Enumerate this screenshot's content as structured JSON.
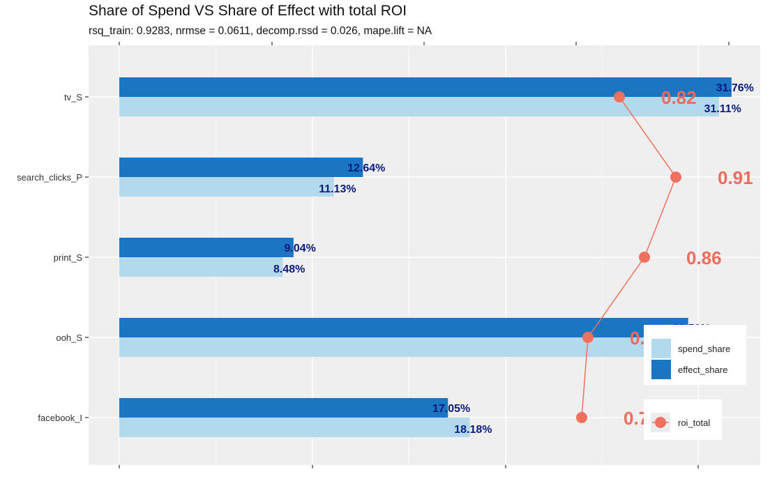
{
  "chart_data": {
    "type": "bar",
    "orientation": "horizontal",
    "title": "Share of Spend VS Share of Effect with total ROI",
    "subtitle": "rsq_train: 0.9283, nrmse = 0.0611, decomp.rssd = 0.026, mape.lift = NA",
    "xlabel": "",
    "ylabel": "",
    "categories": [
      "tv_S",
      "search_clicks_P",
      "print_S",
      "ooh_S",
      "facebook_I"
    ],
    "series": [
      {
        "name": "effect_share",
        "color": "#1b75c1",
        "values": [
          31.76,
          12.64,
          9.04,
          29.51,
          17.05
        ],
        "labels": [
          "31.76%",
          "12.64%",
          "9.04%",
          "29.51%",
          "17.05%"
        ]
      },
      {
        "name": "spend_share",
        "color": "#b3d9ec",
        "values": [
          31.11,
          11.13,
          8.48,
          31.1,
          18.18
        ],
        "labels": [
          "31.11%",
          "11.13%",
          "8.48%",
          "31.10%",
          "18.18%"
        ]
      }
    ],
    "line_series": {
      "name": "roi_total",
      "color": "#f0705f",
      "values": [
        0.82,
        0.91,
        0.86,
        0.77,
        0.76
      ],
      "labels": [
        "0.82",
        "0.91",
        "0.86",
        "0.77",
        "0.76"
      ]
    },
    "xlim": [
      0,
      33.3
    ],
    "roi_axis_range": [
      0.637,
      0.98
    ],
    "grid": true,
    "x_tick_labels_shown": false,
    "legend": {
      "placement": "bottom-right",
      "bar_entries": [
        "spend_share",
        "effect_share"
      ],
      "line_entries": [
        "roi_total"
      ]
    }
  }
}
